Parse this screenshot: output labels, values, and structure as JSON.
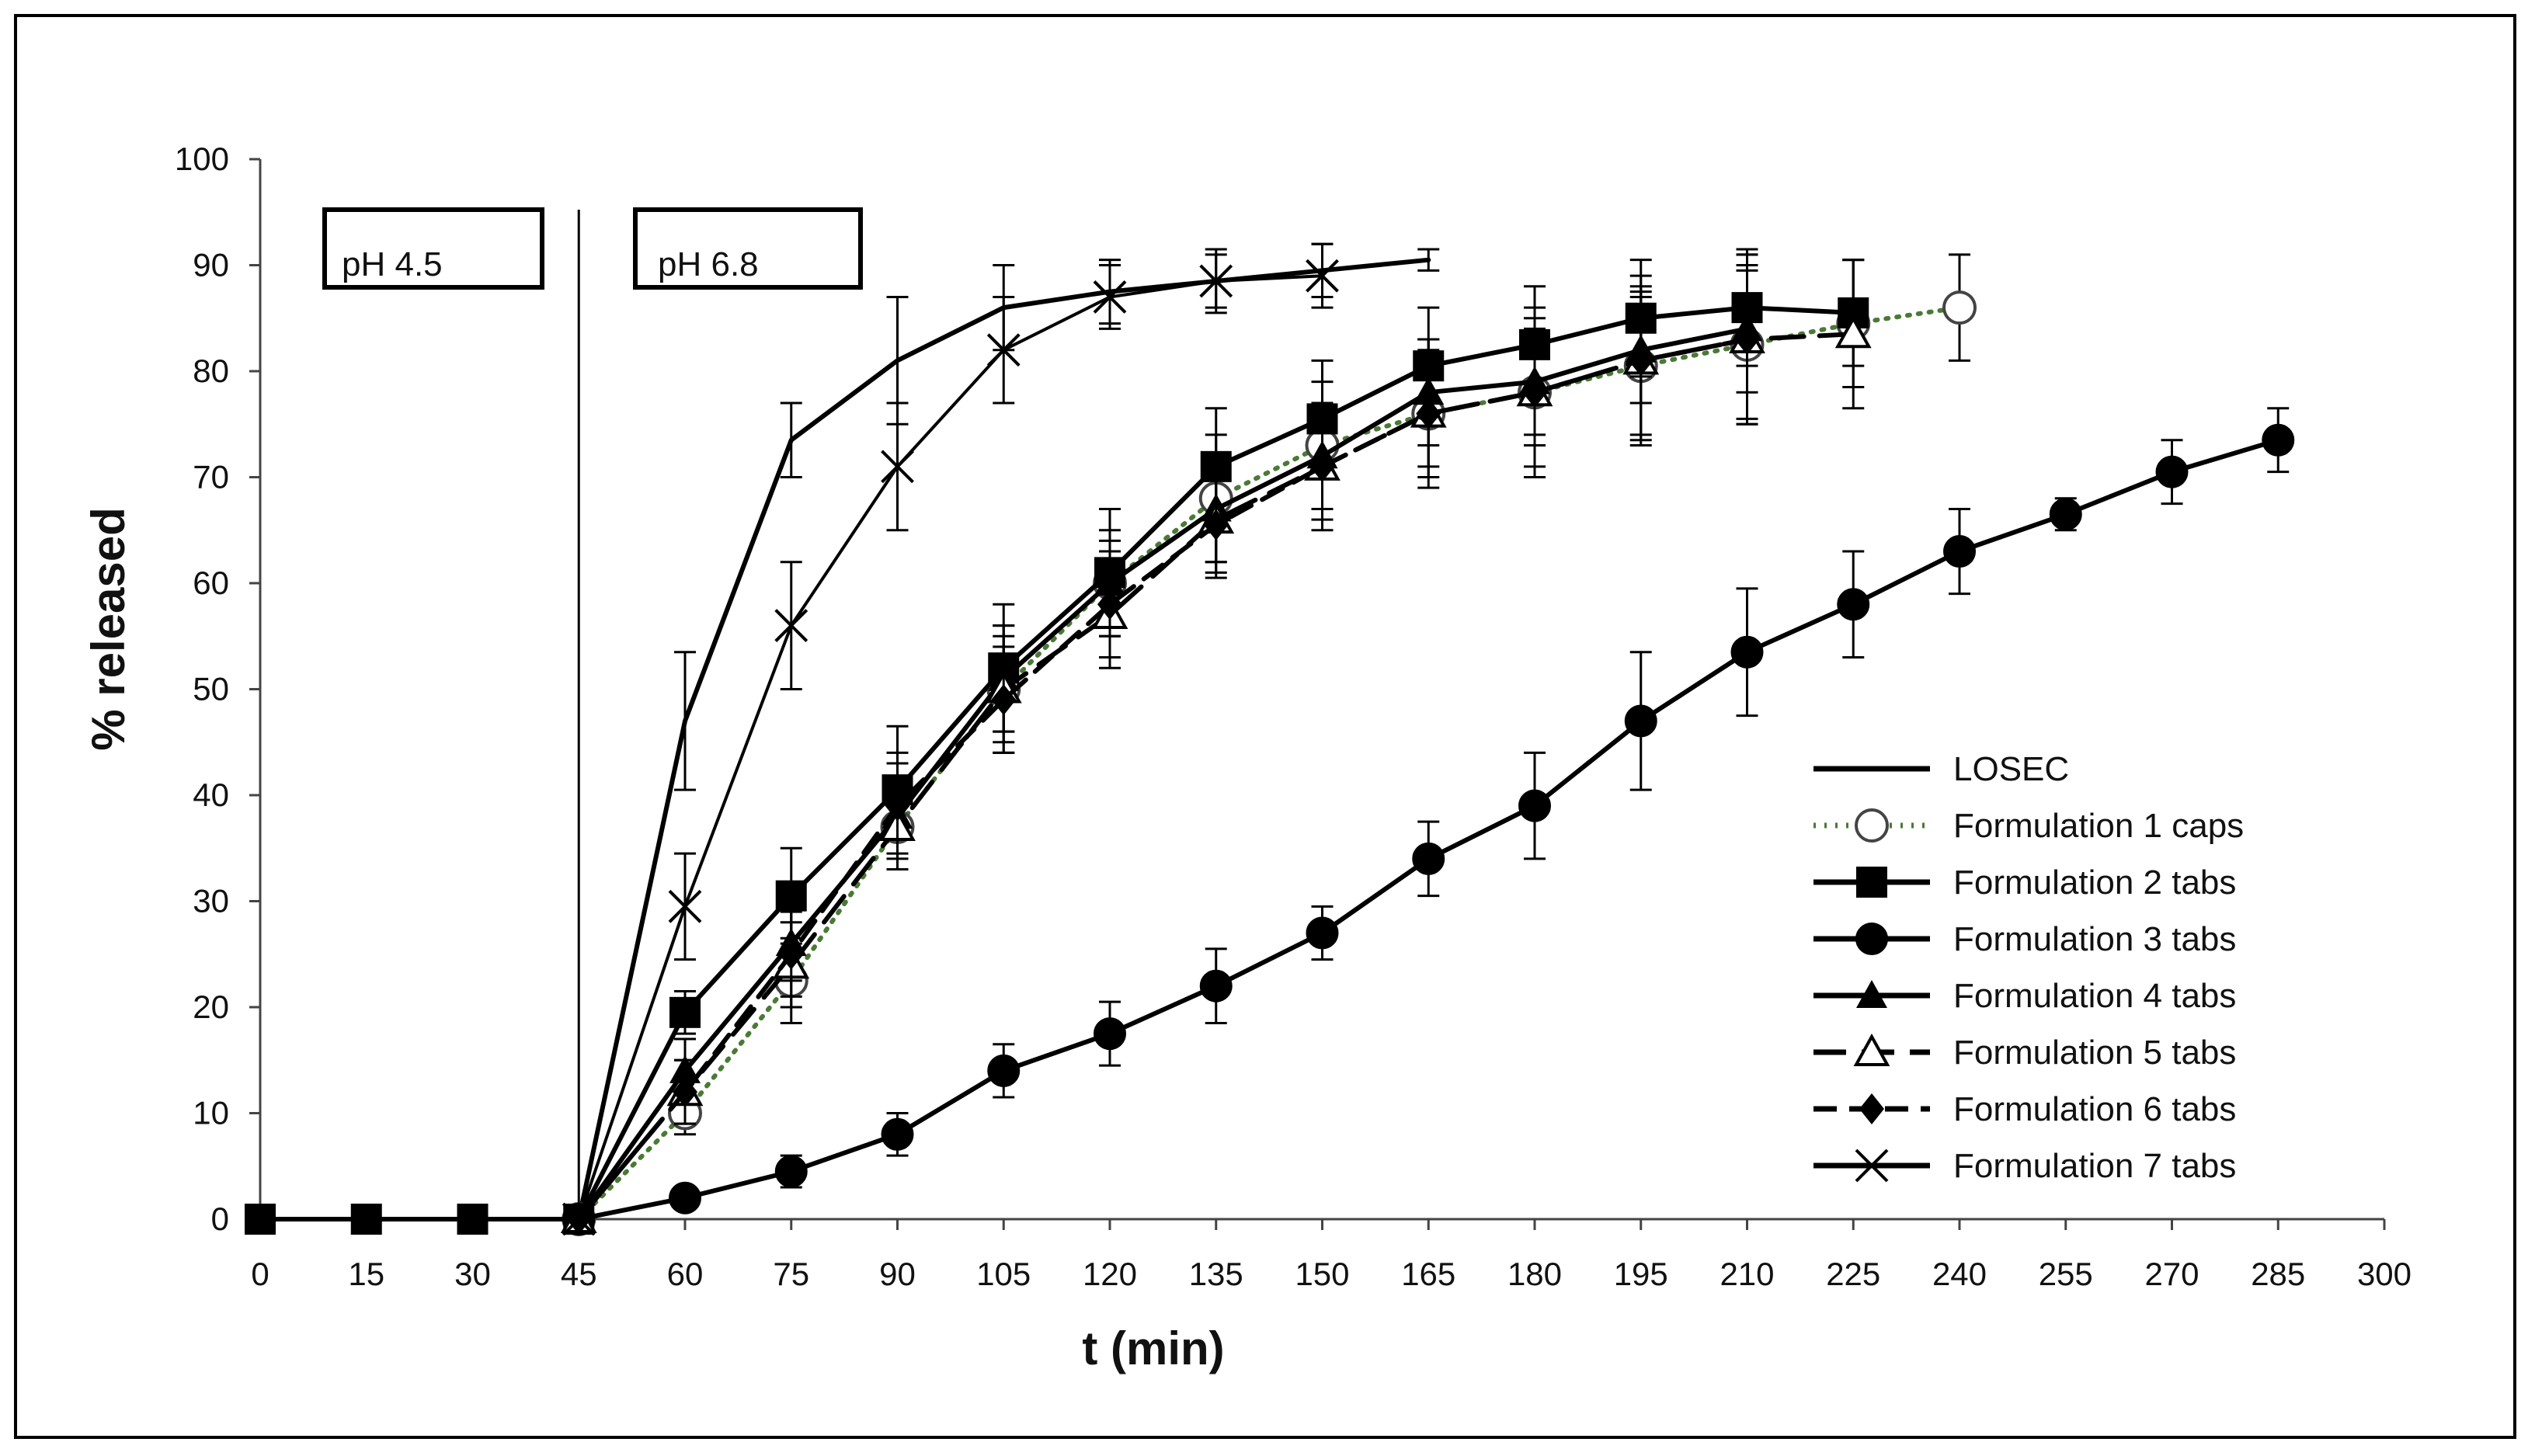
{
  "chart_data": {
    "type": "line",
    "title": "",
    "xlabel": "t (min)",
    "ylabel": "% released",
    "xlim": [
      0,
      300
    ],
    "ylim": [
      0,
      100
    ],
    "x_ticks": [
      0,
      15,
      30,
      45,
      60,
      75,
      90,
      105,
      120,
      135,
      150,
      165,
      180,
      195,
      210,
      225,
      240,
      255,
      270,
      285,
      300
    ],
    "y_ticks": [
      0,
      10,
      20,
      30,
      40,
      50,
      60,
      70,
      80,
      90,
      100
    ],
    "grid": false,
    "legend_position": "bottom-right",
    "annotations": [
      {
        "label": "pH 4.5"
      },
      {
        "label": "pH 6.8",
        "divider_at_x": 45
      }
    ],
    "series": [
      {
        "name": "LOSEC",
        "marker": "none",
        "line": "solid",
        "color": "#000000",
        "points": [
          [
            45,
            0,
            0
          ],
          [
            60,
            47,
            6.5
          ],
          [
            75,
            73.5,
            3.5
          ],
          [
            90,
            81,
            6
          ],
          [
            105,
            86,
            4
          ],
          [
            120,
            87.5,
            3
          ],
          [
            135,
            88.5,
            2.5
          ],
          [
            150,
            89.5,
            2.5
          ],
          [
            165,
            90.5,
            1
          ]
        ]
      },
      {
        "name": "Formulation 1 caps",
        "marker": "open-circle",
        "line": "dotted",
        "color": "#4a7a35",
        "points": [
          [
            45,
            0,
            0
          ],
          [
            60,
            10,
            2
          ],
          [
            75,
            22.5,
            4
          ],
          [
            90,
            37,
            4
          ],
          [
            105,
            50,
            6
          ],
          [
            120,
            60,
            5
          ],
          [
            135,
            68,
            6
          ],
          [
            150,
            73,
            6
          ],
          [
            165,
            76,
            5
          ],
          [
            180,
            78,
            5
          ],
          [
            195,
            80.5,
            7
          ],
          [
            210,
            82.5,
            7
          ],
          [
            225,
            84.5,
            6
          ],
          [
            240,
            86,
            5
          ]
        ]
      },
      {
        "name": "Formulation 2 tabs",
        "marker": "filled-square",
        "line": "solid",
        "color": "#000000",
        "points": [
          [
            0,
            0,
            0
          ],
          [
            15,
            0,
            0
          ],
          [
            30,
            0,
            0
          ],
          [
            45,
            0,
            0
          ],
          [
            60,
            19.5,
            2
          ],
          [
            75,
            30.5,
            4.5
          ],
          [
            90,
            40.5,
            6
          ],
          [
            105,
            52,
            6
          ],
          [
            120,
            61,
            6
          ],
          [
            135,
            71,
            5.5
          ],
          [
            150,
            75.5,
            5.5
          ],
          [
            165,
            80.5,
            5.5
          ],
          [
            180,
            82.5,
            5.5
          ],
          [
            195,
            85,
            5.5
          ],
          [
            210,
            86,
            5.5
          ],
          [
            225,
            85.5,
            5
          ]
        ]
      },
      {
        "name": "Formulation 3 tabs",
        "marker": "filled-circle",
        "line": "solid",
        "color": "#000000",
        "points": [
          [
            45,
            0,
            0
          ],
          [
            60,
            2,
            1
          ],
          [
            75,
            4.5,
            1.5
          ],
          [
            90,
            8,
            2
          ],
          [
            105,
            14,
            2.5
          ],
          [
            120,
            17.5,
            3
          ],
          [
            135,
            22,
            3.5
          ],
          [
            150,
            27,
            2.5
          ],
          [
            165,
            34,
            3.5
          ],
          [
            180,
            39,
            5
          ],
          [
            195,
            47,
            6.5
          ],
          [
            210,
            53.5,
            6
          ],
          [
            225,
            58,
            5
          ],
          [
            240,
            63,
            4
          ],
          [
            255,
            66.5,
            1.5
          ],
          [
            270,
            70.5,
            3
          ],
          [
            285,
            73.5,
            3
          ]
        ]
      },
      {
        "name": "Formulation 4 tabs",
        "marker": "filled-triangle",
        "line": "solid",
        "color": "#000000",
        "points": [
          [
            45,
            0,
            0
          ],
          [
            60,
            14,
            3
          ],
          [
            75,
            26,
            3.5
          ],
          [
            90,
            38,
            5
          ],
          [
            105,
            51,
            5
          ],
          [
            120,
            60,
            4
          ],
          [
            135,
            67,
            5
          ],
          [
            150,
            72,
            5
          ],
          [
            165,
            78,
            5
          ],
          [
            180,
            79,
            5
          ],
          [
            195,
            82,
            5
          ],
          [
            210,
            84,
            6
          ]
        ]
      },
      {
        "name": "Formulation 5 tabs",
        "marker": "open-triangle",
        "line": "long-dash",
        "color": "#000000",
        "points": [
          [
            45,
            0,
            0
          ],
          [
            60,
            12,
            3
          ],
          [
            75,
            24,
            4
          ],
          [
            90,
            37,
            4
          ],
          [
            105,
            50,
            5
          ],
          [
            120,
            57,
            5
          ],
          [
            135,
            66,
            5
          ],
          [
            150,
            71,
            6
          ],
          [
            165,
            76,
            7
          ],
          [
            180,
            78,
            8
          ],
          [
            195,
            81,
            8
          ],
          [
            210,
            83,
            8
          ],
          [
            225,
            83.5,
            7
          ]
        ]
      },
      {
        "name": "Formulation 6 tabs",
        "marker": "filled-diamond",
        "line": "dashed",
        "color": "#000000",
        "points": [
          [
            45,
            0,
            0
          ],
          [
            60,
            12,
            3
          ],
          [
            75,
            25,
            4
          ],
          [
            90,
            39,
            5
          ],
          [
            105,
            49,
            5
          ],
          [
            120,
            58,
            5
          ],
          [
            135,
            65.5,
            5
          ],
          [
            150,
            71,
            5
          ],
          [
            165,
            76,
            6
          ],
          [
            180,
            78,
            7
          ],
          [
            195,
            81,
            7
          ],
          [
            210,
            83,
            8
          ]
        ]
      },
      {
        "name": "Formulation 7 tabs",
        "marker": "x",
        "line": "solid-thin",
        "color": "#000000",
        "points": [
          [
            45,
            0,
            0
          ],
          [
            60,
            29.5,
            5
          ],
          [
            75,
            56,
            6
          ],
          [
            90,
            71,
            6
          ],
          [
            105,
            82,
            5
          ],
          [
            120,
            87,
            3
          ],
          [
            135,
            88.5,
            3
          ],
          [
            150,
            89,
            3
          ]
        ]
      }
    ]
  }
}
